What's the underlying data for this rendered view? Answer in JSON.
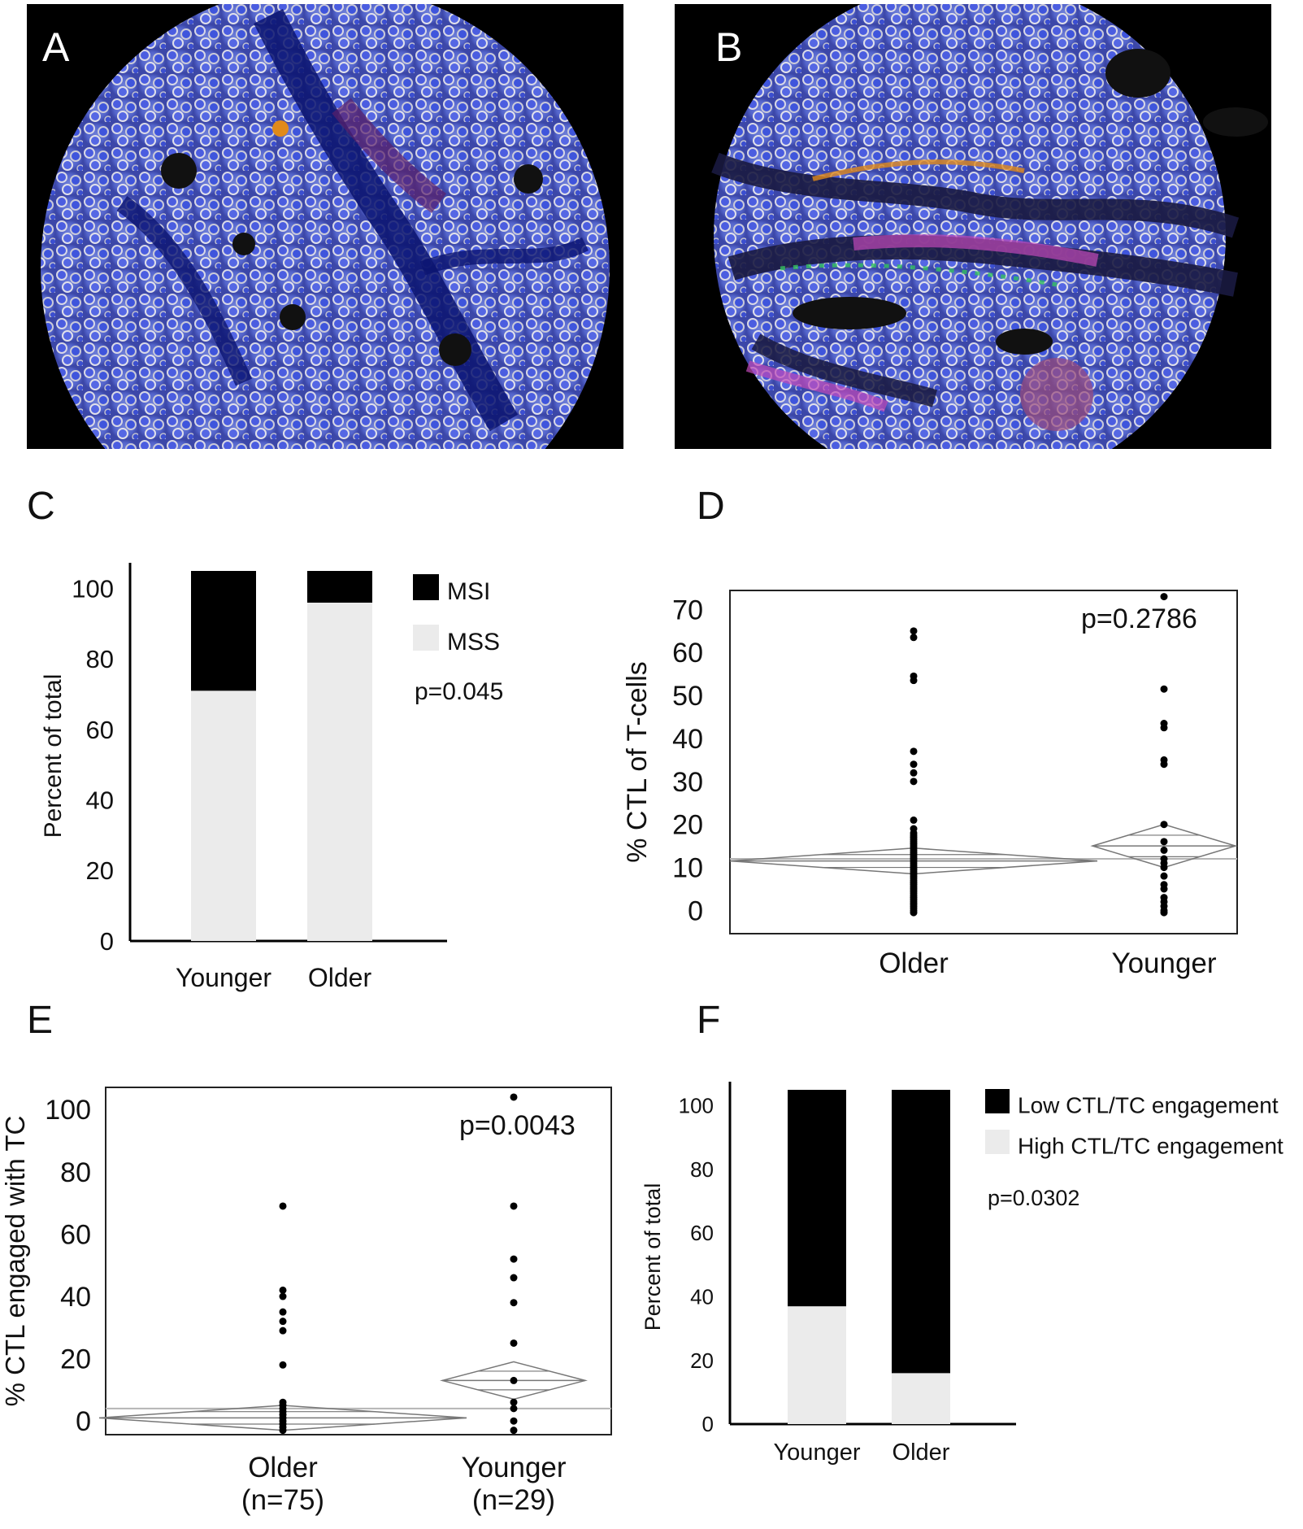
{
  "panels": {
    "A": "A",
    "B": "B",
    "C": "C",
    "D": "D",
    "E": "E",
    "F": "F"
  },
  "chart_data": [
    {
      "panel": "C",
      "type": "bar",
      "stacked": true,
      "categories": [
        "Younger",
        "Older"
      ],
      "series": [
        {
          "name": "MSS",
          "values": [
            71,
            96
          ],
          "color": "#ebebeb"
        },
        {
          "name": "MSI",
          "values": [
            34,
            9
          ],
          "color": "#000000"
        }
      ],
      "ylabel": "Percent of total",
      "yticks": [
        "0",
        "20",
        "40",
        "60",
        "80",
        "100"
      ],
      "ylim": [
        0,
        105
      ],
      "pvalue": "p=0.045",
      "legend_position": "right"
    },
    {
      "panel": "D",
      "type": "scatter",
      "categories": [
        "Older",
        "Younger"
      ],
      "ylabel": "% CTL of T-cells",
      "yticks": [
        "0",
        "10",
        "20",
        "30",
        "40",
        "50",
        "60",
        "70"
      ],
      "ylim": [
        -2,
        75
      ],
      "pvalue": "p=0.2786",
      "grand_mean": 12,
      "groups": [
        {
          "name": "Older",
          "mean": 11.5,
          "ci": [
            8.5,
            14.5
          ],
          "points": [
            65,
            63.5,
            54.5,
            53.5,
            37,
            34,
            32,
            30,
            21,
            19,
            18,
            17.5,
            17,
            16.5,
            16,
            15.5,
            15,
            14.5,
            14,
            13.5,
            13,
            12.5,
            12,
            11.5,
            11,
            10.5,
            10,
            9.5,
            9,
            8.5,
            8,
            7.5,
            7,
            6.5,
            6,
            5.5,
            5,
            4.5,
            4,
            3.5,
            3,
            2.5,
            2,
            1.5,
            1,
            0.5,
            0,
            -0.5
          ]
        },
        {
          "name": "Younger",
          "mean": 15,
          "ci": [
            10,
            20
          ],
          "points": [
            73,
            51.5,
            43.5,
            42.5,
            35,
            34,
            20,
            16,
            14,
            12,
            11,
            10,
            8,
            6,
            5,
            3,
            2,
            1,
            0,
            -0.5
          ]
        }
      ]
    },
    {
      "panel": "E",
      "type": "scatter",
      "categories": [
        "Older\n(n=75)",
        "Younger\n(n=29)"
      ],
      "category_labels": [
        [
          "Older",
          "(n=75)"
        ],
        [
          "Younger",
          "(n=29)"
        ]
      ],
      "ylabel": "% CTL engaged with  TC",
      "yticks": [
        "0",
        "20",
        "40",
        "60",
        "80",
        "100"
      ],
      "ylim": [
        -7,
        110
      ],
      "pvalue": "p=0.0043",
      "grand_mean": 4,
      "groups": [
        {
          "name": "Older",
          "mean": 1,
          "ci": [
            -3,
            5
          ],
          "points": [
            69,
            42,
            40,
            35,
            32,
            29,
            18,
            6,
            5,
            4,
            3,
            2,
            1,
            0,
            -1,
            -2,
            -3
          ]
        },
        {
          "name": "Younger",
          "mean": 13,
          "ci": [
            7,
            19
          ],
          "points": [
            104,
            69,
            52,
            46,
            38,
            25,
            13,
            6,
            4,
            0,
            -3
          ]
        }
      ]
    },
    {
      "panel": "F",
      "type": "bar",
      "stacked": true,
      "categories": [
        "Younger",
        "Older"
      ],
      "series": [
        {
          "name": "High CTL/TC engagement",
          "values": [
            37,
            16
          ],
          "color": "#ebebeb"
        },
        {
          "name": "Low CTL/TC engagement",
          "values": [
            68,
            89
          ],
          "color": "#000000"
        }
      ],
      "ylabel": "Percent of total",
      "yticks": [
        "0",
        "20",
        "40",
        "60",
        "80",
        "100"
      ],
      "ylim": [
        0,
        105
      ],
      "pvalue": "p=0.0302",
      "legend_position": "right"
    }
  ]
}
